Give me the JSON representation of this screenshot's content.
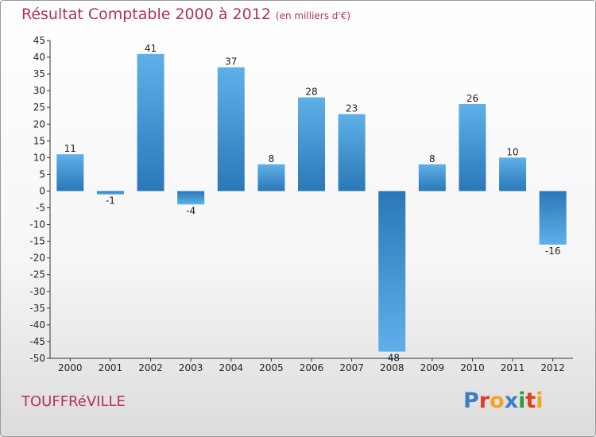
{
  "title": "Résultat Comptable 2000 à 2012",
  "unit": "(en milliers d'€)",
  "town": "TOUFFRéVILLE",
  "logo": {
    "letters": [
      "P",
      "r",
      "o",
      "x",
      "i",
      "t",
      "i"
    ],
    "colors": [
      "#3b7fc4",
      "#e0401e",
      "#f2a52c",
      "#3b7fc4",
      "#2f9c3c",
      "#e0401e",
      "#f2a52c"
    ]
  },
  "colors": {
    "title": "#b5305a",
    "bar_dark": "#2a78b8",
    "bar_light": "#5fb0e8"
  },
  "chart_data": {
    "type": "bar",
    "title": "Résultat Comptable 2000 à 2012",
    "ylabel": "en milliers d'€",
    "categories": [
      "2000",
      "2001",
      "2002",
      "2003",
      "2004",
      "2005",
      "2006",
      "2007",
      "2008",
      "2009",
      "2010",
      "2011",
      "2012"
    ],
    "values": [
      11,
      -1,
      41,
      -4,
      37,
      8,
      28,
      23,
      -48,
      8,
      26,
      10,
      -16
    ],
    "ylim": [
      -50,
      45
    ],
    "yticks": [
      45,
      40,
      35,
      30,
      25,
      20,
      15,
      10,
      5,
      0,
      -5,
      -10,
      -15,
      -20,
      -25,
      -30,
      -35,
      -40,
      -45,
      -50
    ],
    "grid": false
  }
}
